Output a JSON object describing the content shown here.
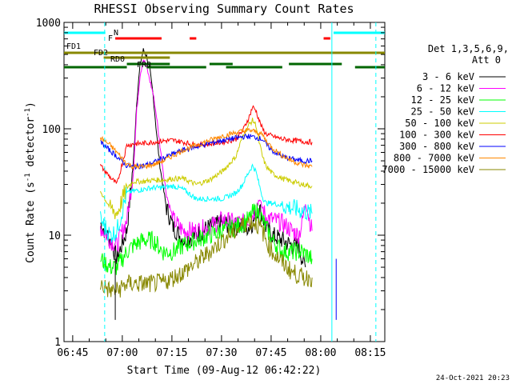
{
  "chart_data": {
    "type": "line",
    "title": "RHESSI Observing Summary Count Rates",
    "xlabel": "Start Time (09-Aug-12 06:42:22)",
    "ylabel_main": "Count Rate (s",
    "ylabel_sup1": "-1",
    "ylabel_mid": " detector",
    "ylabel_sup2": "-1",
    "ylabel_end": ")",
    "y_scale": "log",
    "ylim": [
      1,
      1000
    ],
    "y_ticks": [
      {
        "value": 1,
        "label": "1"
      },
      {
        "value": 10,
        "label": "10"
      },
      {
        "value": 100,
        "label": "100"
      },
      {
        "value": 1000,
        "label": "1000"
      }
    ],
    "x_unit": "minutes after 06:42:22",
    "xlim": [
      0,
      97
    ],
    "x_ticks": [
      {
        "value": 2.63,
        "label": "06:45"
      },
      {
        "value": 17.63,
        "label": "07:00"
      },
      {
        "value": 32.63,
        "label": "07:15"
      },
      {
        "value": 47.63,
        "label": "07:30"
      },
      {
        "value": 62.63,
        "label": "07:45"
      },
      {
        "value": 77.63,
        "label": "08:00"
      },
      {
        "value": 92.63,
        "label": "08:15"
      }
    ],
    "legend": {
      "placement": "right",
      "header1": "Det 1,3,5,6,9,",
      "header2": "Att 0"
    },
    "series": [
      {
        "name": "3 - 6 keV",
        "color": "#000000",
        "points": [
          [
            11,
            13
          ],
          [
            14,
            9
          ],
          [
            16,
            6
          ],
          [
            19,
            11
          ],
          [
            21,
            50
          ],
          [
            22,
            180
          ],
          [
            23,
            400
          ],
          [
            24,
            550
          ],
          [
            25,
            480
          ],
          [
            26,
            350
          ],
          [
            27,
            200
          ],
          [
            28,
            90
          ],
          [
            29,
            45
          ],
          [
            30,
            28
          ],
          [
            31,
            18
          ],
          [
            33,
            12
          ],
          [
            36,
            9
          ],
          [
            40,
            10
          ],
          [
            44,
            12
          ],
          [
            48,
            13
          ],
          [
            52,
            12
          ],
          [
            54,
            12
          ],
          [
            56,
            12
          ],
          [
            57,
            13
          ],
          [
            58,
            15
          ],
          [
            59,
            18
          ],
          [
            60,
            15
          ],
          [
            61,
            12
          ],
          [
            63,
            10
          ],
          [
            66,
            9
          ],
          [
            69,
            8
          ],
          [
            71,
            8
          ],
          [
            72,
            6
          ],
          [
            73,
            5
          ]
        ]
      },
      {
        "name": "6 - 12 keV",
        "color": "#ff00ff",
        "points": [
          [
            11,
            12
          ],
          [
            14,
            9
          ],
          [
            16,
            8
          ],
          [
            19,
            14
          ],
          [
            21,
            40
          ],
          [
            22,
            150
          ],
          [
            23,
            320
          ],
          [
            24,
            450
          ],
          [
            25,
            380
          ],
          [
            26,
            280
          ],
          [
            27,
            210
          ],
          [
            28,
            130
          ],
          [
            29,
            70
          ],
          [
            30,
            40
          ],
          [
            31,
            24
          ],
          [
            33,
            14
          ],
          [
            36,
            11
          ],
          [
            40,
            11
          ],
          [
            44,
            12
          ],
          [
            48,
            14
          ],
          [
            52,
            13
          ],
          [
            54,
            13
          ],
          [
            56,
            14
          ],
          [
            57,
            16
          ],
          [
            58,
            18
          ],
          [
            59,
            22
          ],
          [
            60,
            18
          ],
          [
            61,
            15
          ],
          [
            63,
            14
          ],
          [
            66,
            13
          ],
          [
            69,
            11
          ],
          [
            71,
            10
          ],
          [
            72,
            13
          ],
          [
            73,
            20
          ],
          [
            74,
            15
          ],
          [
            75,
            11
          ]
        ]
      },
      {
        "name": "12 - 25 keV",
        "color": "#00ff00",
        "points": [
          [
            11,
            6
          ],
          [
            14,
            5
          ],
          [
            16,
            5
          ],
          [
            19,
            7
          ],
          [
            21,
            8
          ],
          [
            24,
            9
          ],
          [
            27,
            9
          ],
          [
            30,
            7
          ],
          [
            33,
            7
          ],
          [
            36,
            8
          ],
          [
            40,
            9
          ],
          [
            44,
            10
          ],
          [
            48,
            11
          ],
          [
            52,
            12
          ],
          [
            54,
            13
          ],
          [
            56,
            14
          ],
          [
            57,
            16
          ],
          [
            58,
            17
          ],
          [
            59,
            16
          ],
          [
            60,
            14
          ],
          [
            61,
            12
          ],
          [
            63,
            9
          ],
          [
            66,
            7
          ],
          [
            69,
            7
          ],
          [
            72,
            7
          ],
          [
            75,
            6
          ]
        ]
      },
      {
        "name": "25 - 50 keV",
        "color": "#00ffff",
        "points": [
          [
            11,
            14
          ],
          [
            14,
            10
          ],
          [
            16,
            11
          ],
          [
            19,
            25
          ],
          [
            21,
            26
          ],
          [
            24,
            27
          ],
          [
            27,
            28
          ],
          [
            30,
            28
          ],
          [
            33,
            29
          ],
          [
            36,
            27
          ],
          [
            40,
            22
          ],
          [
            44,
            22
          ],
          [
            48,
            22
          ],
          [
            52,
            25
          ],
          [
            54,
            30
          ],
          [
            56,
            40
          ],
          [
            57,
            45
          ],
          [
            58,
            40
          ],
          [
            59,
            30
          ],
          [
            60,
            23
          ],
          [
            61,
            20
          ],
          [
            63,
            20
          ],
          [
            66,
            19
          ],
          [
            69,
            18
          ],
          [
            72,
            17
          ],
          [
            75,
            16
          ]
        ]
      },
      {
        "name": "50 - 100 keV",
        "color": "#cccc00",
        "points": [
          [
            11,
            26
          ],
          [
            14,
            18
          ],
          [
            16,
            16
          ],
          [
            19,
            28
          ],
          [
            21,
            32
          ],
          [
            24,
            32
          ],
          [
            27,
            33
          ],
          [
            30,
            33
          ],
          [
            33,
            34
          ],
          [
            36,
            34
          ],
          [
            40,
            30
          ],
          [
            44,
            33
          ],
          [
            48,
            40
          ],
          [
            52,
            55
          ],
          [
            54,
            85
          ],
          [
            56,
            110
          ],
          [
            57,
            120
          ],
          [
            58,
            110
          ],
          [
            59,
            75
          ],
          [
            60,
            55
          ],
          [
            61,
            45
          ],
          [
            63,
            38
          ],
          [
            66,
            34
          ],
          [
            69,
            32
          ],
          [
            72,
            30
          ],
          [
            75,
            29
          ]
        ]
      },
      {
        "name": "100 - 300 keV",
        "color": "#ff0000",
        "points": [
          [
            11,
            45
          ],
          [
            14,
            35
          ],
          [
            16,
            30
          ],
          [
            19,
            70
          ],
          [
            21,
            72
          ],
          [
            24,
            73
          ],
          [
            27,
            75
          ],
          [
            30,
            77
          ],
          [
            33,
            78
          ],
          [
            36,
            75
          ],
          [
            40,
            70
          ],
          [
            44,
            72
          ],
          [
            48,
            75
          ],
          [
            52,
            80
          ],
          [
            54,
            95
          ],
          [
            56,
            130
          ],
          [
            57,
            160
          ],
          [
            58,
            150
          ],
          [
            59,
            120
          ],
          [
            60,
            100
          ],
          [
            61,
            90
          ],
          [
            63,
            85
          ],
          [
            66,
            80
          ],
          [
            69,
            78
          ],
          [
            72,
            76
          ],
          [
            75,
            75
          ]
        ]
      },
      {
        "name": "300 - 800 keV",
        "color": "#0000ff",
        "points": [
          [
            11,
            75
          ],
          [
            14,
            62
          ],
          [
            16,
            55
          ],
          [
            19,
            45
          ],
          [
            21,
            44
          ],
          [
            24,
            45
          ],
          [
            27,
            48
          ],
          [
            30,
            53
          ],
          [
            33,
            58
          ],
          [
            36,
            63
          ],
          [
            40,
            68
          ],
          [
            44,
            73
          ],
          [
            48,
            78
          ],
          [
            52,
            82
          ],
          [
            54,
            84
          ],
          [
            56,
            85
          ],
          [
            58,
            83
          ],
          [
            60,
            80
          ],
          [
            61,
            72
          ],
          [
            63,
            62
          ],
          [
            66,
            55
          ],
          [
            69,
            52
          ],
          [
            72,
            50
          ],
          [
            75,
            50
          ]
        ]
      },
      {
        "name": "800 - 7000 keV",
        "color": "#ff8800",
        "points": [
          [
            11,
            82
          ],
          [
            14,
            70
          ],
          [
            16,
            60
          ],
          [
            19,
            47
          ],
          [
            21,
            44
          ],
          [
            24,
            44
          ],
          [
            27,
            46
          ],
          [
            30,
            50
          ],
          [
            33,
            56
          ],
          [
            36,
            63
          ],
          [
            40,
            70
          ],
          [
            44,
            78
          ],
          [
            48,
            86
          ],
          [
            52,
            92
          ],
          [
            54,
            95
          ],
          [
            56,
            97
          ],
          [
            58,
            94
          ],
          [
            60,
            88
          ],
          [
            61,
            78
          ],
          [
            63,
            66
          ],
          [
            66,
            56
          ],
          [
            69,
            50
          ],
          [
            72,
            46
          ],
          [
            75,
            44
          ]
        ]
      },
      {
        "name": "7000 - 15000 keV",
        "color": "#888800",
        "points": [
          [
            11,
            3.5
          ],
          [
            14,
            3
          ],
          [
            16,
            3
          ],
          [
            19,
            3.5
          ],
          [
            21,
            3.5
          ],
          [
            24,
            3.5
          ],
          [
            27,
            3.5
          ],
          [
            30,
            3.6
          ],
          [
            33,
            4
          ],
          [
            36,
            4.5
          ],
          [
            40,
            5.5
          ],
          [
            44,
            7
          ],
          [
            48,
            9
          ],
          [
            52,
            11
          ],
          [
            54,
            12.5
          ],
          [
            56,
            13.5
          ],
          [
            58,
            13
          ],
          [
            60,
            11
          ],
          [
            61,
            9
          ],
          [
            63,
            7
          ],
          [
            66,
            5.5
          ],
          [
            69,
            4.5
          ],
          [
            72,
            4
          ],
          [
            75,
            4
          ]
        ]
      }
    ],
    "flag_bars": [
      {
        "label": "N",
        "color": "#00ffff",
        "segments": [
          [
            0,
            12.5
          ],
          [
            81.5,
            97
          ]
        ]
      },
      {
        "label": "F",
        "color": "#ff0000",
        "segments": [
          [
            15.5,
            29.5
          ],
          [
            38,
            40
          ],
          [
            78.5,
            80.5
          ]
        ]
      },
      {
        "label": "FD1",
        "color": "#888800",
        "segments": [
          [
            0,
            97
          ]
        ]
      },
      {
        "label": "FD2",
        "color": "#888800",
        "segments": [
          [
            12,
            32
          ]
        ]
      },
      {
        "label": "RD0",
        "color": "#006600",
        "segments": [
          [
            19,
            32
          ],
          [
            44,
            51
          ],
          [
            68,
            84
          ]
        ]
      },
      {
        "label": "FR8",
        "color": "#006600",
        "segments": [
          [
            0,
            19
          ],
          [
            25,
            43
          ],
          [
            49,
            66
          ],
          [
            88,
            97
          ]
        ]
      }
    ],
    "vlines": [
      {
        "x": 12.3,
        "color": "#00ffff",
        "style": "dashed"
      },
      {
        "x": 81.0,
        "color": "#00ffff",
        "style": "solid"
      },
      {
        "x": 94.3,
        "color": "#00ffff",
        "style": "dashed"
      }
    ],
    "gap_edge_lines": [
      {
        "x": 15.5,
        "color": "#000000"
      },
      {
        "x": 82.3,
        "color": "#0000ff"
      }
    ],
    "footer_date": "24-Oct-2021 20:23"
  }
}
